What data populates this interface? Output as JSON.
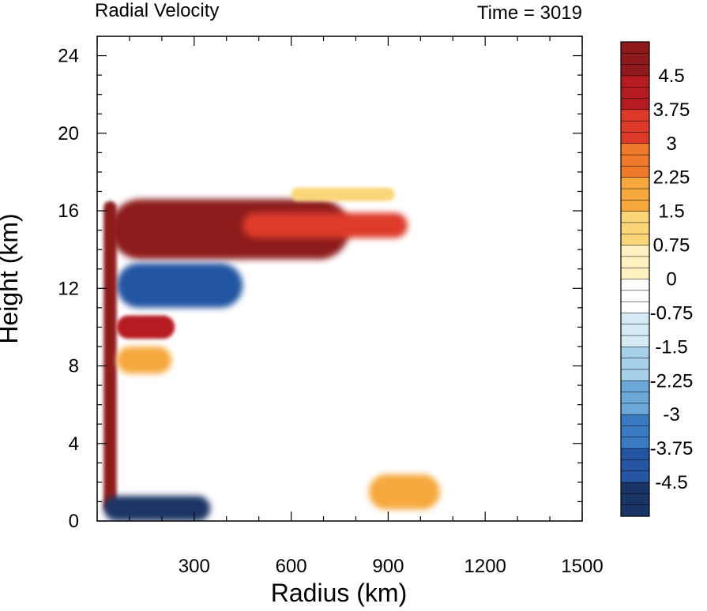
{
  "chart_data": {
    "type": "heatmap",
    "title": "Radial Velocity",
    "subtitle": "Time = 3019",
    "xlabel": "Radius (km)",
    "ylabel": "Height (km)",
    "xlim": [
      0,
      1500
    ],
    "ylim": [
      0,
      25
    ],
    "xticks": [
      300,
      600,
      900,
      1200,
      1500
    ],
    "yticks": [
      0,
      4,
      8,
      12,
      16,
      20,
      24
    ],
    "colorbar": {
      "ticks": [
        "4.5",
        "3.75",
        "3",
        "2.25",
        "1.5",
        "0.75",
        "0",
        "-0.75",
        "-1.5",
        "-2.25",
        "-3",
        "-3.75",
        "-4.5"
      ],
      "tick_values": [
        4.5,
        3.75,
        3,
        2.25,
        1.5,
        0.75,
        0,
        -0.75,
        -1.5,
        -2.25,
        -3,
        -3.75,
        -4.5
      ],
      "min": -5.25,
      "max": 5.25,
      "step": 0.25,
      "colors": [
        "#1b3466",
        "#2454a2",
        "#3b7bc4",
        "#6ba8d8",
        "#a6cfe8",
        "#d6eaf5",
        "#ffffff",
        "#fff2c0",
        "#fbd678",
        "#f6a83c",
        "#ef7a2b",
        "#de3a2a",
        "#b51c22",
        "#8e1a1e"
      ]
    },
    "features": [
      {
        "label": "strong outflow",
        "sign": "positive",
        "radius_range": [
          40,
          780
        ],
        "height_range": [
          13.5,
          16.6
        ],
        "peak": 5.25
      },
      {
        "label": "tapering outflow tongue",
        "sign": "positive",
        "radius_range": [
          450,
          960
        ],
        "height_range": [
          14.6,
          15.9
        ],
        "peak": 3
      },
      {
        "label": "inflow below outflow",
        "sign": "negative",
        "radius_range": [
          60,
          450
        ],
        "height_range": [
          11.0,
          13.3
        ],
        "peak": -4.5
      },
      {
        "label": "eyewall outflow column",
        "sign": "positive",
        "radius_range": [
          20,
          60
        ],
        "height_range": [
          0.5,
          16.5
        ],
        "peak": 5.25
      },
      {
        "label": "boundary-layer inflow",
        "sign": "negative",
        "radius_range": [
          20,
          350
        ],
        "height_range": [
          0,
          1.3
        ],
        "peak": -5.25
      },
      {
        "label": "mid-level outflow band",
        "sign": "positive",
        "radius_range": [
          60,
          240
        ],
        "height_range": [
          9.4,
          10.6
        ],
        "peak": 3.75
      },
      {
        "label": "weak outflow band",
        "sign": "positive",
        "radius_range": [
          60,
          230
        ],
        "height_range": [
          7.6,
          9.0
        ],
        "peak": 1.5
      },
      {
        "label": "weak upper outflow",
        "sign": "positive",
        "radius_range": [
          600,
          920
        ],
        "height_range": [
          16.5,
          17.2
        ],
        "peak": 1.0
      },
      {
        "label": "weak low-level outflow",
        "sign": "positive",
        "radius_range": [
          840,
          1060
        ],
        "height_range": [
          0.6,
          2.4
        ],
        "peak": 2.0
      }
    ]
  }
}
